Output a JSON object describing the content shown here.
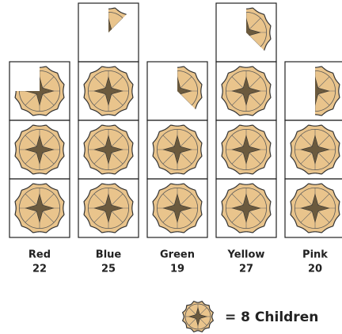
{
  "chart_data": {
    "type": "pictogram",
    "categories": [
      "Red",
      "Blue",
      "Green",
      "Yellow",
      "Pink"
    ],
    "values": [
      22,
      25,
      19,
      27,
      20
    ],
    "color": "#e9c48c",
    "key": {
      "value": 8,
      "label": "= 8 Children"
    }
  }
}
